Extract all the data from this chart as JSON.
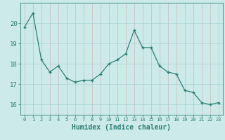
{
  "x": [
    0,
    1,
    2,
    3,
    4,
    5,
    6,
    7,
    8,
    9,
    10,
    11,
    12,
    13,
    14,
    15,
    16,
    17,
    18,
    19,
    20,
    21,
    22,
    23
  ],
  "y": [
    19.8,
    20.5,
    18.2,
    17.6,
    17.9,
    17.3,
    17.1,
    17.2,
    17.2,
    17.5,
    18.0,
    18.2,
    18.5,
    19.65,
    18.8,
    18.8,
    17.9,
    17.6,
    17.5,
    16.7,
    16.6,
    16.1,
    16.0,
    16.1
  ],
  "line_color": "#2e7d72",
  "marker": "+",
  "bg_color": "#cceae8",
  "grid_color": "#aad4d0",
  "xlabel": "Humidex (Indice chaleur)",
  "ylim": [
    15.5,
    21.0
  ],
  "xlim": [
    -0.5,
    23.5
  ],
  "yticks": [
    16,
    17,
    18,
    19,
    20
  ],
  "xticks": [
    0,
    1,
    2,
    3,
    4,
    5,
    6,
    7,
    8,
    9,
    10,
    11,
    12,
    13,
    14,
    15,
    16,
    17,
    18,
    19,
    20,
    21,
    22,
    23
  ]
}
